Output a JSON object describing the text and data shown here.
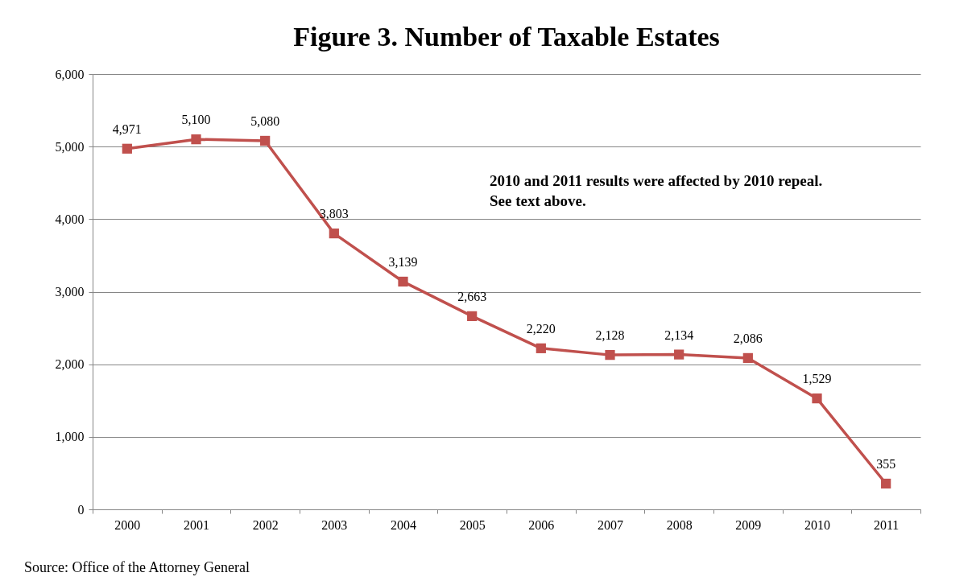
{
  "chart_data": {
    "type": "line",
    "title": "Figure 3.  Number of Taxable Estates",
    "categories": [
      "2000",
      "2001",
      "2002",
      "2003",
      "2004",
      "2005",
      "2006",
      "2007",
      "2008",
      "2009",
      "2010",
      "2011"
    ],
    "series": [
      {
        "color": "#c0504d",
        "values": [
          4971,
          5100,
          5080,
          3803,
          3139,
          2663,
          2220,
          2128,
          2134,
          2086,
          1529,
          355
        ],
        "value_labels": [
          "4,971",
          "5,100",
          "5,080",
          "3,803",
          "3,139",
          "2,663",
          "2,220",
          "2,128",
          "2,134",
          "2,086",
          "1,529",
          "355"
        ]
      }
    ],
    "ylim": [
      0,
      6000
    ],
    "yticks": [
      0,
      {
        "value": 1000,
        "label": "1,000"
      },
      {
        "value": 2000,
        "label": "2,000"
      },
      {
        "value": 3000,
        "label": "3,000"
      },
      {
        "value": 4000,
        "label": "4,000"
      },
      {
        "value": 5000,
        "label": "5,000"
      },
      {
        "value": 6000,
        "label": "6,000"
      }
    ],
    "grid": "y",
    "marker": "square",
    "line_style": "solid",
    "annotations": [
      "2010 and 2011 results were affected by 2010 repeal.\nSee text above.",
      "Source: Office of the Attorney General"
    ]
  }
}
